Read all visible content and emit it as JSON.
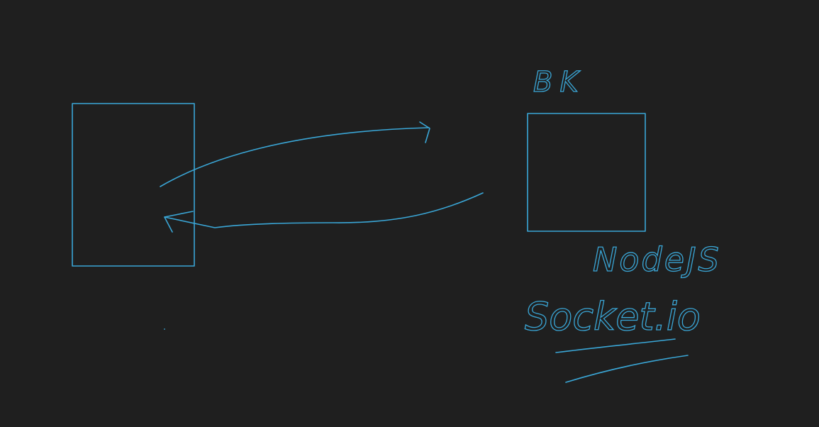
{
  "canvas": {
    "background": "#1f1f1f",
    "ink_color": "#3aa6d6"
  },
  "labels": {
    "server_label": "BK",
    "runtime_label": "NodeJS",
    "library_label": "Socket.io"
  }
}
